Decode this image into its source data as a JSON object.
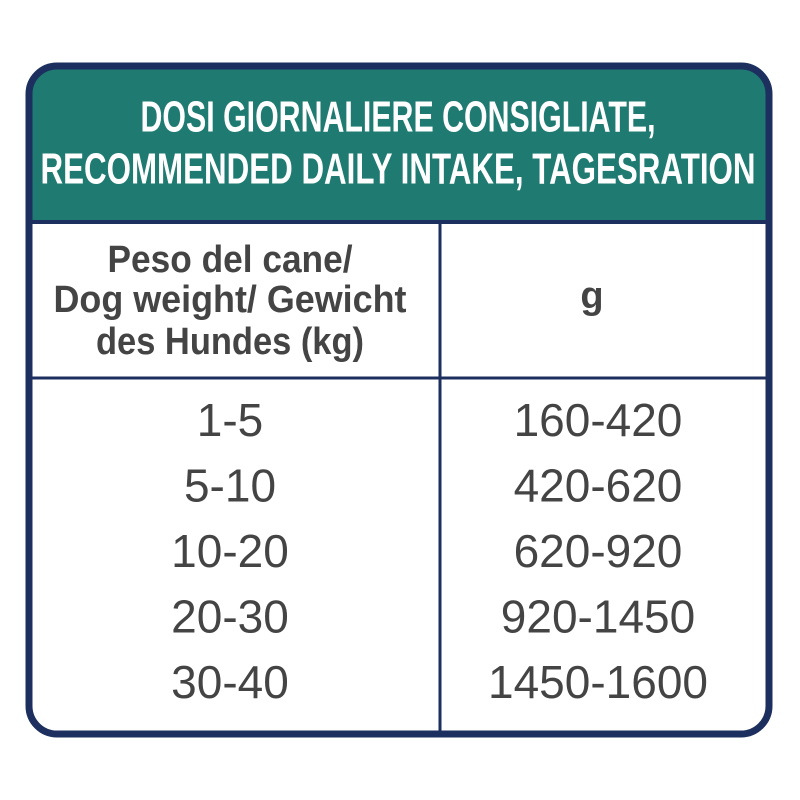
{
  "header": {
    "title_lines": [
      "DOSI GIORNALIERE CONSIGLIATE,",
      "RECOMMENDED DAILY INTAKE, TAGESRATION"
    ]
  },
  "table": {
    "columns": [
      [
        "Peso del cane/",
        "Dog weight/ Gewicht",
        "des Hundes (kg)"
      ],
      [
        "g"
      ]
    ],
    "rows": [
      [
        "1-5",
        "160-420"
      ],
      [
        "5-10",
        "420-620"
      ],
      [
        "10-20",
        "620-920"
      ],
      [
        "20-30",
        "920-1450"
      ],
      [
        "30-40",
        "1450-1600"
      ]
    ]
  }
}
